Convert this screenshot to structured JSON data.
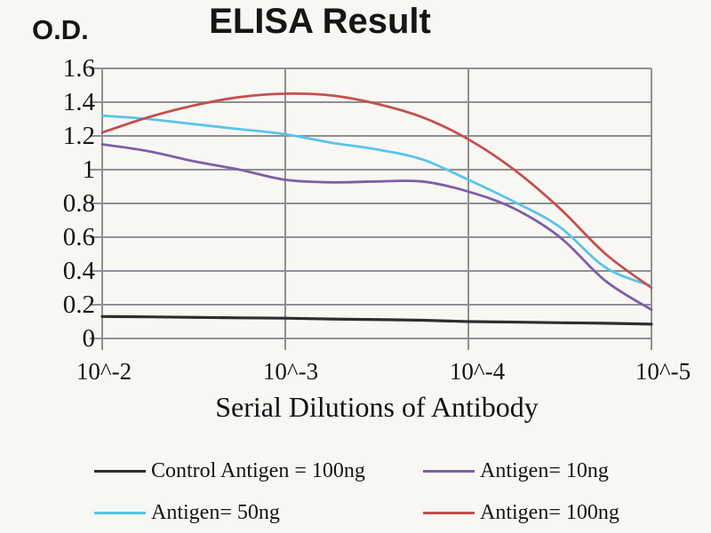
{
  "figure": {
    "background": "#f8f7f3"
  },
  "chart_data": {
    "type": "line",
    "title": "ELISA Result",
    "ylabel": "O.D.",
    "xlabel": "Serial Dilutions of Antibody",
    "grid": true,
    "legend_position": "bottom",
    "ylim": [
      0,
      1.6
    ],
    "ytick_step": 0.2,
    "y_tick_labels": [
      "1.6",
      "1.4",
      "1.2",
      "1",
      "0.8",
      "0.6",
      "0.4",
      "0.2",
      "0"
    ],
    "x_tick_labels": [
      "10^-2",
      "10^-3",
      "10^-4",
      "10^-5"
    ],
    "x_exponents": [
      2,
      2.25,
      2.5,
      2.75,
      3,
      3.25,
      3.5,
      3.75,
      4,
      4.25,
      4.5,
      4.75,
      5
    ],
    "xlim_exponents": [
      2,
      5
    ],
    "grid_color": "#8f8f94",
    "series": [
      {
        "name": "Control Antigen = 100ng",
        "color": "#2e2e2e",
        "values": [
          0.13,
          0.128,
          0.125,
          0.122,
          0.12,
          0.115,
          0.112,
          0.108,
          0.1,
          0.097,
          0.093,
          0.09,
          0.085
        ]
      },
      {
        "name": "Antigen= 10ng",
        "color": "#7d5fa6",
        "values": [
          1.15,
          1.11,
          1.05,
          1.0,
          0.94,
          0.925,
          0.93,
          0.93,
          0.87,
          0.77,
          0.6,
          0.34,
          0.17
        ]
      },
      {
        "name": "Antigen= 50ng",
        "color": "#58c5e8",
        "values": [
          1.32,
          1.3,
          1.27,
          1.24,
          1.21,
          1.16,
          1.12,
          1.06,
          0.94,
          0.81,
          0.66,
          0.42,
          0.31
        ]
      },
      {
        "name": "Antigen= 100ng",
        "color": "#c4504e",
        "values": [
          1.22,
          1.31,
          1.38,
          1.43,
          1.45,
          1.44,
          1.39,
          1.31,
          1.18,
          1.0,
          0.77,
          0.5,
          0.3
        ]
      }
    ]
  }
}
